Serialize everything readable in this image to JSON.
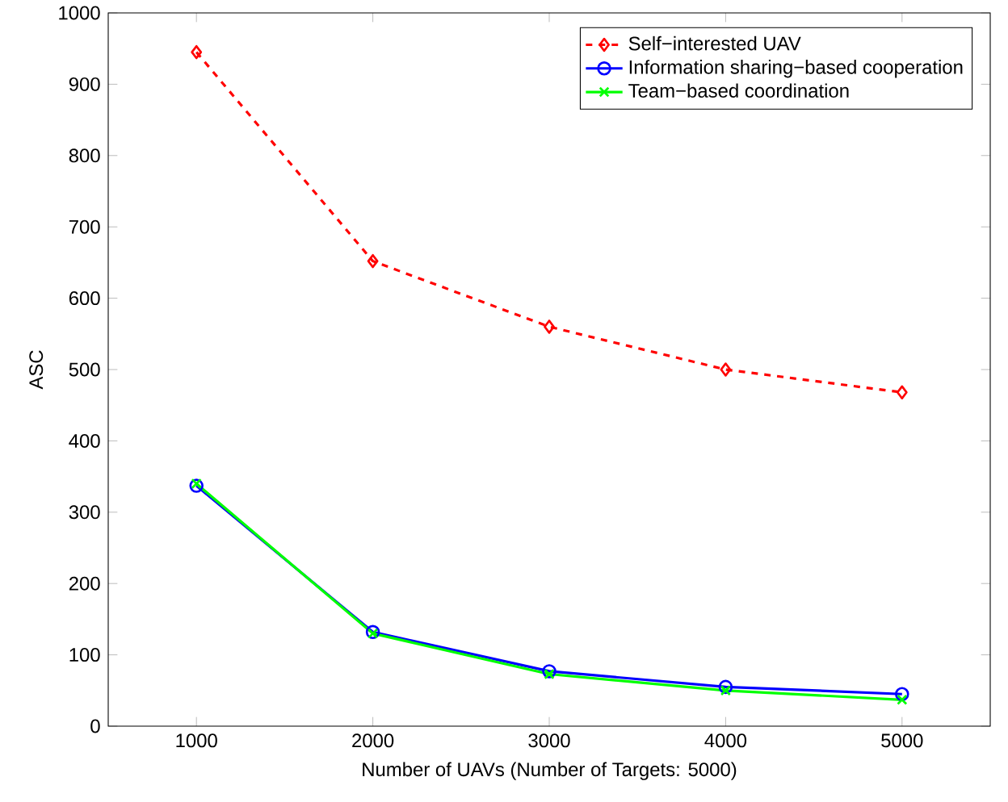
{
  "chart_data": {
    "type": "line",
    "xlabel": "Number of UAVs (Number of Targets: 5000)",
    "ylabel": "ASC",
    "x": [
      1000,
      2000,
      3000,
      4000,
      5000
    ],
    "xlim": [
      500,
      5500
    ],
    "ylim": [
      0,
      1000
    ],
    "xticks": [
      1000,
      2000,
      3000,
      4000,
      5000
    ],
    "yticks": [
      0,
      100,
      200,
      300,
      400,
      500,
      600,
      700,
      800,
      900,
      1000
    ],
    "legend": "top right",
    "series": [
      {
        "name": "Self−interested UAV",
        "color": "#ff0000",
        "values": [
          945,
          652,
          560,
          500,
          468
        ],
        "marker": "diamond",
        "line_style": "dashed"
      },
      {
        "name": "Information sharing−based cooperation",
        "color": "#0000ff",
        "values": [
          337,
          132,
          77,
          55,
          45
        ],
        "marker": "circle",
        "line_style": "solid"
      },
      {
        "name": "Team−based coordination",
        "color": "#00ff00",
        "values": [
          340,
          130,
          73,
          50,
          37
        ],
        "marker": "cross",
        "line_style": "solid"
      }
    ]
  }
}
